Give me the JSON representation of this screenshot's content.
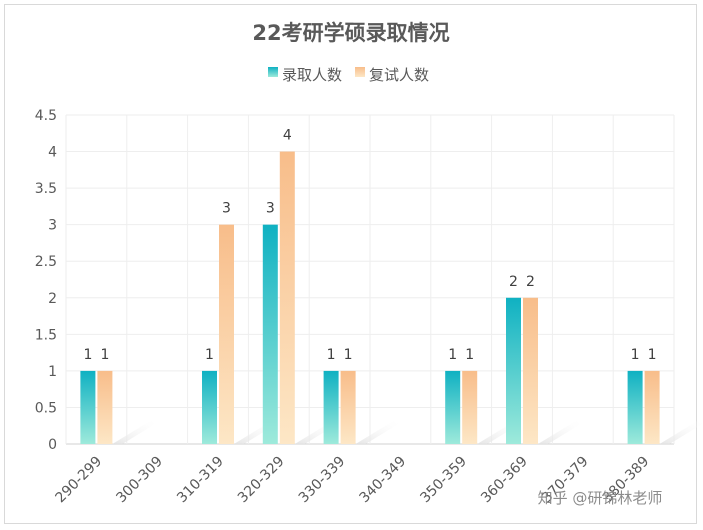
{
  "chart_data": {
    "type": "bar",
    "title": "22考研学硕录取情况",
    "xlabel": "",
    "ylabel": "",
    "categories": [
      "290-299",
      "300-309",
      "310-319",
      "320-329",
      "330-339",
      "340-349",
      "350-359",
      "360-369",
      "370-379",
      "380-389"
    ],
    "series": [
      {
        "name": "录取人数",
        "values": [
          1,
          0,
          1,
          3,
          1,
          0,
          1,
          2,
          0,
          1
        ],
        "color": "#16b2c1"
      },
      {
        "name": "复试人数",
        "values": [
          1,
          0,
          3,
          4,
          1,
          0,
          1,
          2,
          0,
          1
        ],
        "color": "#f8c08f"
      }
    ],
    "ylim": [
      0,
      4.5
    ],
    "yticks": [
      "0",
      "0.5",
      "1",
      "1.5",
      "2",
      "2.5",
      "3",
      "3.5",
      "4",
      "4.5"
    ],
    "legend_position": "top",
    "grid": true
  },
  "watermark": "知乎 @研锦林老师"
}
